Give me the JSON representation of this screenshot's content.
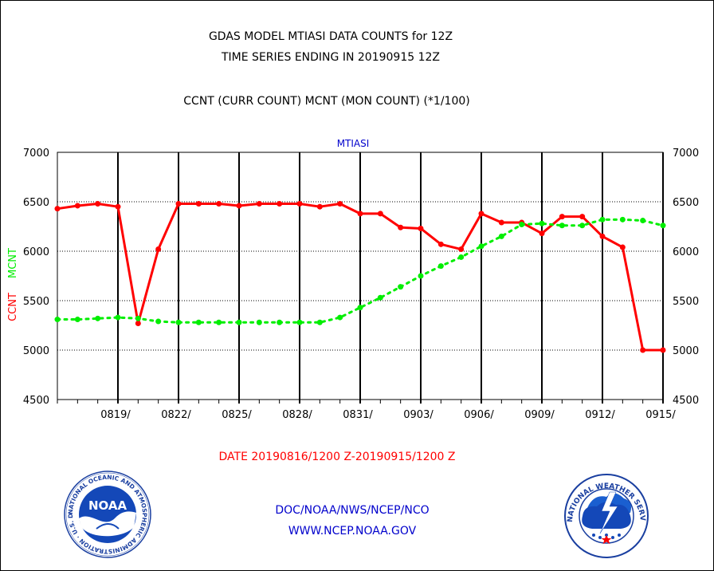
{
  "chart_data": {
    "type": "line",
    "title": "GDAS MODEL MTIASI DATA COUNTS for 12Z",
    "subtitle": "TIME SERIES ENDING IN 20190915 12Z",
    "description_line": "CCNT (CURR COUNT) MCNT (MON COUNT) (*1/100)",
    "panel_label": "MTIASI",
    "ylabel_left_1": "CCNT",
    "ylabel_left_2": "MCNT",
    "xlabel": "DATE 20190816/1200 Z-20190915/1200 Z",
    "ylim": [
      4500,
      7000
    ],
    "y_ticks": [
      "4500",
      "5000",
      "5500",
      "6000",
      "6500",
      "7000"
    ],
    "x_ticks": [
      "0819/",
      "0822/",
      "0825/",
      "0828/",
      "0831/",
      "0903/",
      "0906/",
      "0909/",
      "0912/",
      "0915/"
    ],
    "grid": true,
    "colors": {
      "ccnt": "#ff0000",
      "mcnt": "#00ee00",
      "text": "#000000",
      "credit": "#0000cc",
      "panel_label": "#0000cc"
    },
    "series": [
      {
        "name": "CCNT",
        "style": "solid",
        "values": [
          6430,
          6460,
          6480,
          6450,
          5270,
          6020,
          6480,
          6480,
          6480,
          6460,
          6480,
          6480,
          6480,
          6450,
          6480,
          6380,
          6380,
          6240,
          6230,
          6070,
          6020,
          6380,
          6290,
          6290,
          6180,
          6350,
          6350,
          6150,
          6040,
          5000,
          5000
        ]
      },
      {
        "name": "MCNT",
        "style": "dotted",
        "values": [
          5310,
          5310,
          5320,
          5330,
          5320,
          5290,
          5280,
          5280,
          5280,
          5280,
          5280,
          5280,
          5280,
          5280,
          5330,
          5430,
          5530,
          5640,
          5750,
          5850,
          5940,
          6050,
          6150,
          6270,
          6280,
          6260,
          6260,
          6320,
          6320,
          6310,
          6260
        ]
      }
    ]
  },
  "footer": {
    "date_range": "DATE 20190816/1200 Z-20190915/1200 Z",
    "credit_org": "DOC/NOAA/NWS/NCEP/NCO",
    "credit_url": "WWW.NCEP.NOAA.GOV"
  },
  "logos": {
    "noaa": {
      "name": "noaa-logo",
      "text": "NOAA",
      "ring_text": "NATIONAL OCEANIC AND ATMOSPHERIC ADMINISTRATION · U.S. DEPARTMENT OF COMMERCE"
    },
    "nws": {
      "name": "nws-logo",
      "ring_text": "NATIONAL WEATHER SERVICE"
    }
  }
}
